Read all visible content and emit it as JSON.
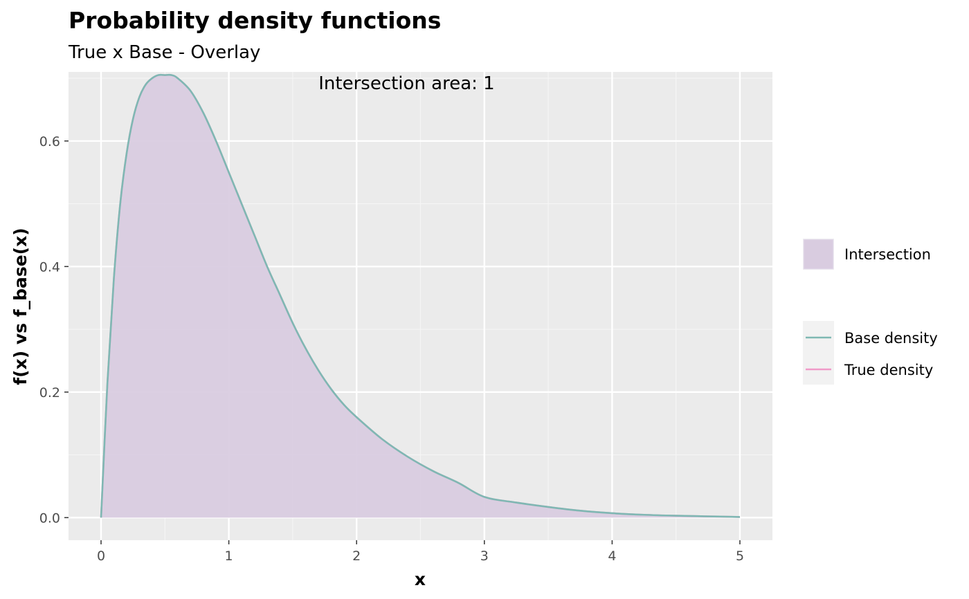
{
  "chart_data": {
    "type": "area",
    "title": "Probability density functions",
    "subtitle": "True x Base - Overlay",
    "xlabel": "x",
    "ylabel": "f(x) vs f_base(x)",
    "xlim": [
      0,
      5
    ],
    "ylim": [
      -0.036,
      0.71
    ],
    "x_ticks": [
      0,
      1,
      2,
      3,
      4,
      5
    ],
    "x_tick_labels": [
      "0",
      "1",
      "2",
      "3",
      "4",
      "5"
    ],
    "y_ticks": [
      0.0,
      0.2,
      0.4,
      0.6
    ],
    "y_tick_labels": [
      "0.0",
      "0.2",
      "0.4",
      "0.6"
    ],
    "grid": true,
    "annotation": "Intersection area:  1",
    "annotation_anchor": {
      "x": 2.5,
      "y": 0.7
    },
    "x": [
      0,
      0.05,
      0.1,
      0.15,
      0.2,
      0.25,
      0.3,
      0.35,
      0.4,
      0.45,
      0.5,
      0.55,
      0.6,
      0.7,
      0.8,
      0.9,
      1.0,
      1.1,
      1.2,
      1.3,
      1.4,
      1.5,
      1.6,
      1.7,
      1.8,
      1.9,
      2.0,
      2.2,
      2.4,
      2.6,
      2.8,
      3.0,
      3.25,
      3.5,
      3.75,
      4.0,
      4.25,
      4.5,
      4.75,
      5.0
    ],
    "series": [
      {
        "name": "Intersection",
        "kind": "area",
        "color": "#d9cce0",
        "values": [
          0,
          0.215,
          0.38,
          0.5,
          0.58,
          0.635,
          0.67,
          0.69,
          0.7,
          0.705,
          0.705,
          0.705,
          0.7,
          0.68,
          0.645,
          0.6,
          0.55,
          0.5,
          0.45,
          0.4,
          0.355,
          0.31,
          0.27,
          0.235,
          0.205,
          0.18,
          0.16,
          0.125,
          0.097,
          0.074,
          0.055,
          0.033,
          0.024,
          0.017,
          0.011,
          0.007,
          0.0045,
          0.003,
          0.002,
          0.001
        ]
      },
      {
        "name": "Base density",
        "kind": "line",
        "color": "#7fb8b3",
        "values": [
          0,
          0.215,
          0.38,
          0.5,
          0.58,
          0.635,
          0.67,
          0.69,
          0.7,
          0.705,
          0.705,
          0.705,
          0.7,
          0.68,
          0.645,
          0.6,
          0.55,
          0.5,
          0.45,
          0.4,
          0.355,
          0.31,
          0.27,
          0.235,
          0.205,
          0.18,
          0.16,
          0.125,
          0.097,
          0.074,
          0.055,
          0.033,
          0.024,
          0.017,
          0.011,
          0.007,
          0.0045,
          0.003,
          0.002,
          0.001
        ]
      },
      {
        "name": "True density",
        "kind": "line",
        "color": "#f09ac8",
        "values": [
          0,
          0.215,
          0.38,
          0.5,
          0.58,
          0.635,
          0.67,
          0.69,
          0.7,
          0.705,
          0.705,
          0.705,
          0.7,
          0.68,
          0.645,
          0.6,
          0.55,
          0.5,
          0.45,
          0.4,
          0.355,
          0.31,
          0.27,
          0.235,
          0.205,
          0.18,
          0.16,
          0.125,
          0.097,
          0.074,
          0.055,
          0.033,
          0.024,
          0.017,
          0.011,
          0.007,
          0.0045,
          0.003,
          0.002,
          0.001
        ]
      }
    ],
    "legend": {
      "placement": "right",
      "groups": [
        {
          "entries": [
            {
              "label": "Intersection",
              "kind": "fill",
              "color": "#d9cce0"
            }
          ]
        },
        {
          "entries": [
            {
              "label": "Base density",
              "kind": "line",
              "color": "#7fb8b3"
            },
            {
              "label": "True density",
              "kind": "line",
              "color": "#f09ac8"
            }
          ]
        }
      ]
    },
    "colors": {
      "panel_bg": "#ebebeb",
      "grid_major": "#ffffff",
      "grid_minor": "#f5f5f5",
      "legend_key_bg": "#f2f2f2"
    }
  }
}
